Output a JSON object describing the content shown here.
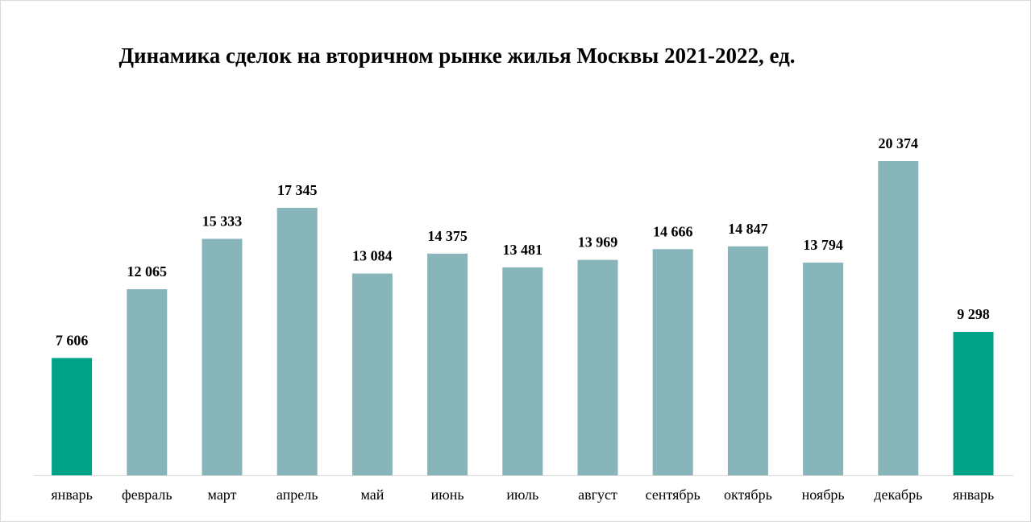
{
  "chart_data": {
    "type": "bar",
    "title": "Динамика сделок на вторичном рынке жилья Москвы 2021-2022, ед.",
    "categories": [
      "январь",
      "февраль",
      "март",
      "апрель",
      "май",
      "июнь",
      "июль",
      "август",
      "сентябрь",
      "октябрь",
      "ноябрь",
      "декабрь",
      "январь"
    ],
    "values": [
      7606,
      12065,
      15333,
      17345,
      13084,
      14375,
      13481,
      13969,
      14666,
      14847,
      13794,
      20374,
      9298
    ],
    "value_labels": [
      "7 606",
      "12 065",
      "15 333",
      "17 345",
      "13 084",
      "14 375",
      "13 481",
      "13 969",
      "14 666",
      "14 847",
      "13 794",
      "20 374",
      "9 298"
    ],
    "colors": [
      "#00a388",
      "#87b5b9",
      "#87b5b9",
      "#87b5b9",
      "#87b5b9",
      "#87b5b9",
      "#87b5b9",
      "#87b5b9",
      "#87b5b9",
      "#87b5b9",
      "#87b5b9",
      "#87b5b9",
      "#00a388"
    ]
  }
}
